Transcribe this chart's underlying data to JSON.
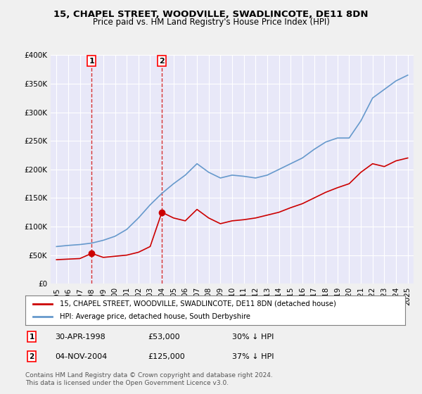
{
  "title": "15, CHAPEL STREET, WOODVILLE, SWADLINCOTE, DE11 8DN",
  "subtitle": "Price paid vs. HM Land Registry's House Price Index (HPI)",
  "bg_color": "#f0f0f0",
  "plot_bg_color": "#e8e8f8",
  "red_color": "#cc0000",
  "blue_color": "#6699cc",
  "marker1_date_idx": 3,
  "marker2_date_idx": 9,
  "marker1_label": "1",
  "marker2_label": "2",
  "legend_red": "15, CHAPEL STREET, WOODVILLE, SWADLINCOTE, DE11 8DN (detached house)",
  "legend_blue": "HPI: Average price, detached house, South Derbyshire",
  "purchase1_date": "30-APR-1998",
  "purchase1_price": "£53,000",
  "purchase1_hpi": "30% ↓ HPI",
  "purchase2_date": "04-NOV-2004",
  "purchase2_price": "£125,000",
  "purchase2_hpi": "37% ↓ HPI",
  "footer": "Contains HM Land Registry data © Crown copyright and database right 2024.\nThis data is licensed under the Open Government Licence v3.0.",
  "years": [
    1995,
    1996,
    1997,
    1998,
    1999,
    2000,
    2001,
    2002,
    2003,
    2004,
    2005,
    2006,
    2007,
    2008,
    2009,
    2010,
    2011,
    2012,
    2013,
    2014,
    2015,
    2016,
    2017,
    2018,
    2019,
    2020,
    2021,
    2022,
    2023,
    2024,
    2025
  ],
  "hpi_values": [
    65000,
    67000,
    68500,
    71000,
    76000,
    83000,
    95000,
    115000,
    138000,
    158000,
    175000,
    190000,
    210000,
    195000,
    185000,
    190000,
    188000,
    185000,
    190000,
    200000,
    210000,
    220000,
    235000,
    248000,
    255000,
    255000,
    285000,
    325000,
    340000,
    355000,
    365000
  ],
  "red_values": [
    42000,
    43000,
    44000,
    53000,
    46000,
    48000,
    50000,
    55000,
    65000,
    125000,
    115000,
    110000,
    130000,
    115000,
    105000,
    110000,
    112000,
    115000,
    120000,
    125000,
    133000,
    140000,
    150000,
    160000,
    168000,
    175000,
    195000,
    210000,
    205000,
    215000,
    220000
  ],
  "ylim_max": 400000,
  "yticks": [
    0,
    50000,
    100000,
    150000,
    200000,
    250000,
    300000,
    350000,
    400000
  ]
}
